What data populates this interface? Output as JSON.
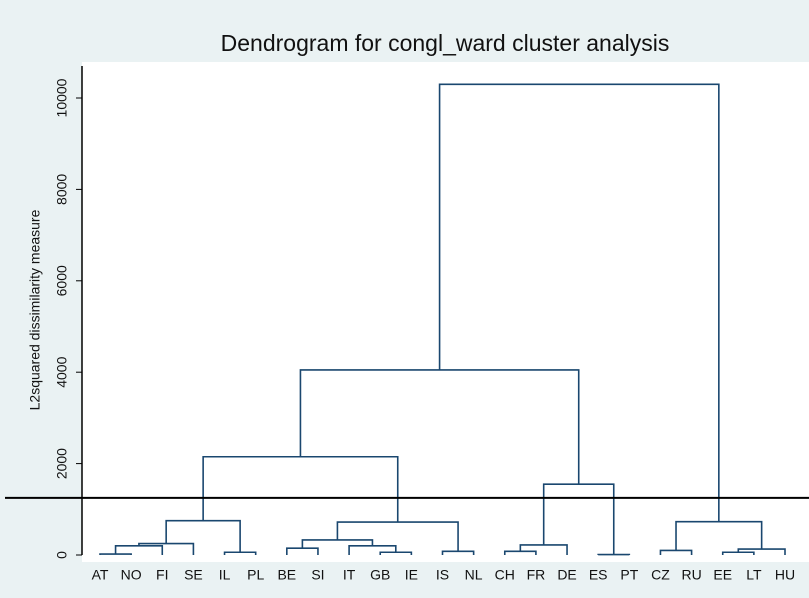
{
  "chart_data": {
    "type": "dendrogram",
    "title": "Dendrogram for congl_ward cluster analysis",
    "ylabel": "L2squared dissimilarity measure",
    "categories": [
      "AT",
      "NO",
      "FI",
      "SE",
      "IL",
      "PL",
      "BE",
      "SI",
      "IT",
      "GB",
      "IE",
      "IS",
      "NL",
      "CH",
      "FR",
      "DE",
      "ES",
      "PT",
      "CZ",
      "RU",
      "EE",
      "LT",
      "HU"
    ],
    "merges": [
      {
        "nodes": [
          0,
          1
        ],
        "height": 20
      },
      {
        "nodes": [
          23,
          2
        ],
        "height": 200
      },
      {
        "nodes": [
          24,
          3
        ],
        "height": 250
      },
      {
        "nodes": [
          4,
          5
        ],
        "height": 60
      },
      {
        "nodes": [
          25,
          26
        ],
        "height": 750
      },
      {
        "nodes": [
          6,
          7
        ],
        "height": 150
      },
      {
        "nodes": [
          9,
          10
        ],
        "height": 60
      },
      {
        "nodes": [
          8,
          29
        ],
        "height": 200
      },
      {
        "nodes": [
          28,
          30
        ],
        "height": 330
      },
      {
        "nodes": [
          11,
          12
        ],
        "height": 80
      },
      {
        "nodes": [
          31,
          32
        ],
        "height": 720
      },
      {
        "nodes": [
          27,
          33
        ],
        "height": 2150
      },
      {
        "nodes": [
          13,
          14
        ],
        "height": 80
      },
      {
        "nodes": [
          35,
          15
        ],
        "height": 220
      },
      {
        "nodes": [
          16,
          17
        ],
        "height": 10
      },
      {
        "nodes": [
          36,
          37
        ],
        "height": 1550
      },
      {
        "nodes": [
          34,
          38
        ],
        "height": 4050
      },
      {
        "nodes": [
          18,
          19
        ],
        "height": 100
      },
      {
        "nodes": [
          20,
          21
        ],
        "height": 60
      },
      {
        "nodes": [
          41,
          22
        ],
        "height": 130
      },
      {
        "nodes": [
          40,
          42
        ],
        "height": 730
      },
      {
        "nodes": [
          39,
          43
        ],
        "height": 10300
      }
    ],
    "cutoff": 1250,
    "color": "#1a476f",
    "ylim": [
      0,
      10700
    ],
    "yticks": [
      0,
      2000,
      4000,
      6000,
      8000,
      10000
    ]
  }
}
